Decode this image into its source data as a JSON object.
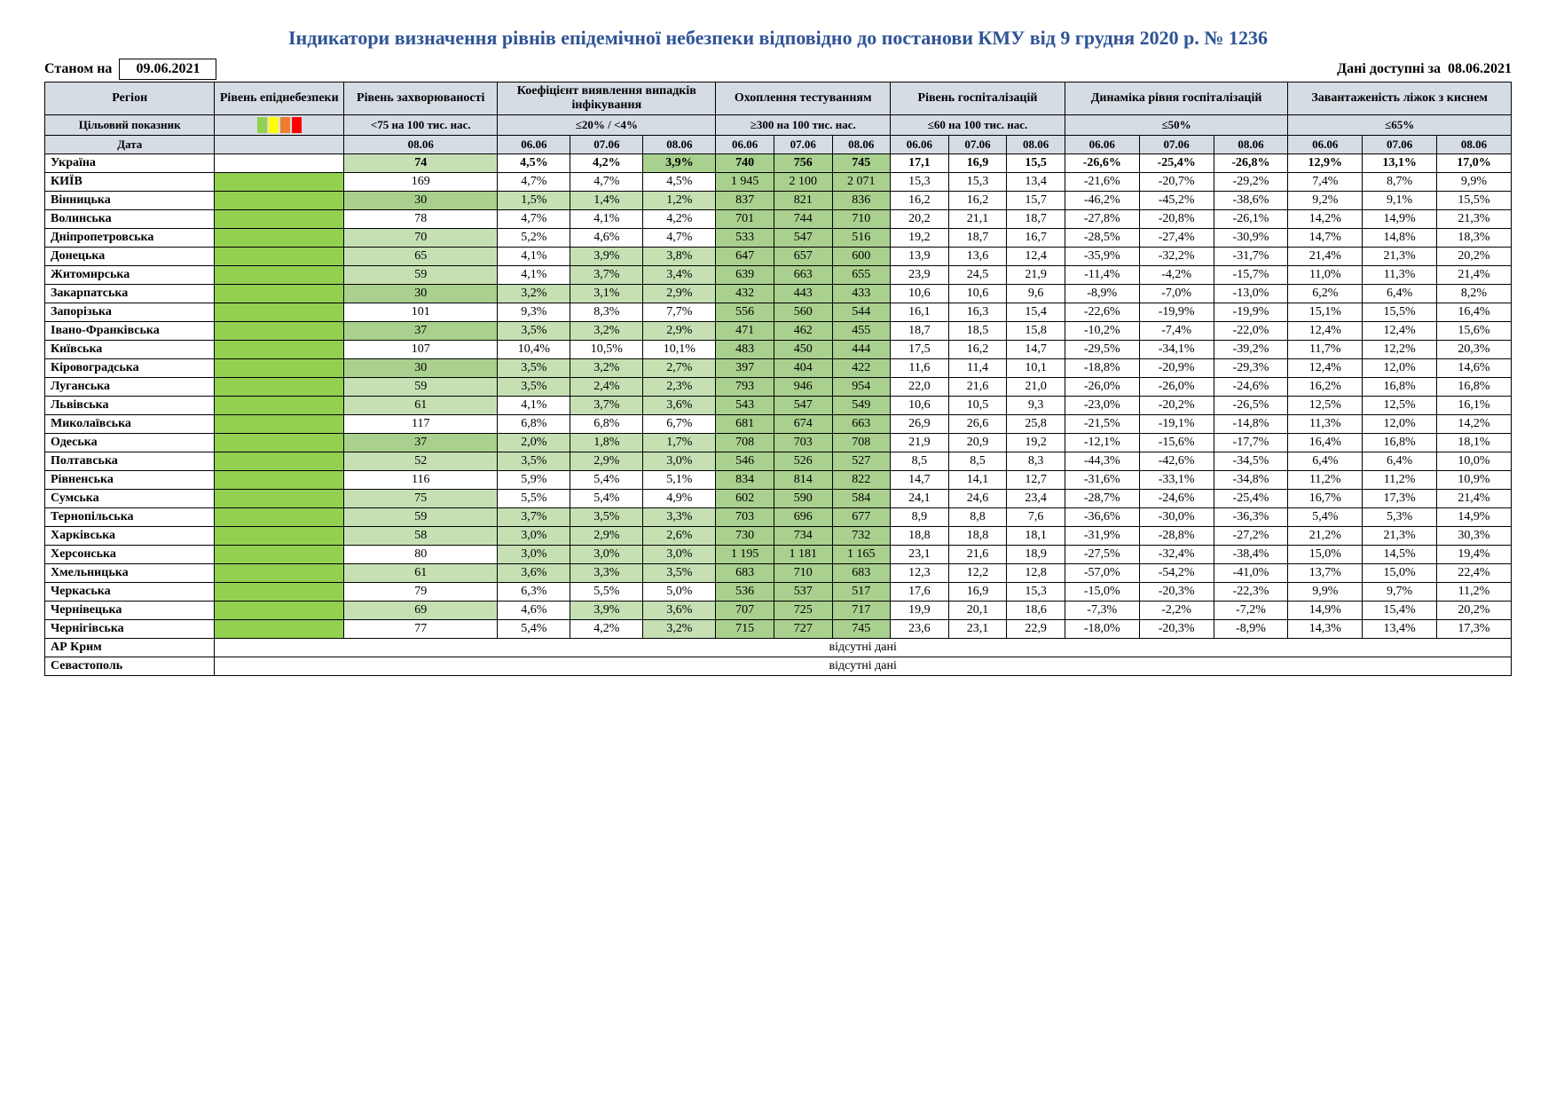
{
  "title": "Індикатори визначення рівнів епідемічної небезпеки відповідно до постанови КМУ від 9 грудня 2020 р. № 1236",
  "asOfLabel": "Станом на",
  "asOfDate": "09.06.2021",
  "dataAvailLabel": "Дані доступні за",
  "dataAvailDate": "08.06.2021",
  "colors": {
    "headerBg": "#d5dce4",
    "greenLight": "#c6e0b4",
    "greenMid": "#a9d08e",
    "greenEpid": "#92d050",
    "titleColor": "#2f5496"
  },
  "headers": {
    "region": "Регіон",
    "epid": "Рівень епіднебезпеки",
    "morbidity": "Рівень захворюваності",
    "detect": "Коефіцієнт виявлення випадків інфікування",
    "testing": "Охоплення тестуванням",
    "hosp": "Рівень госпіталізацій",
    "hospDyn": "Динаміка рівня госпіталізацій",
    "beds": "Завантаженість ліжок з киснем",
    "target": "Цільовий показник",
    "dateRow": "Дата",
    "morbidityTarget": "<75 на 100 тис. нас.",
    "detectTarget": "≤20% / <4%",
    "testingTarget": "≥300 на 100 тис. нас.",
    "hospTarget": "≤60 на 100 тис. нас.",
    "hospDynTarget": "≤50%",
    "bedsTarget": "≤65%",
    "d0606": "06.06",
    "d0706": "07.06",
    "d0806": "08.06"
  },
  "noData": "відсутні дані",
  "rows": [
    {
      "region": "Україна",
      "ukraine": true,
      "morb": {
        "v": "74",
        "g": 1
      },
      "det": [
        "4,5%",
        "4,2%",
        {
          "v": "3,9%",
          "g": 2
        }
      ],
      "test": [
        {
          "v": "740",
          "g": 2
        },
        {
          "v": "756",
          "g": 2
        },
        {
          "v": "745",
          "g": 2
        }
      ],
      "hosp": [
        "17,1",
        "16,9",
        "15,5"
      ],
      "dyn": [
        "-26,6%",
        "-25,4%",
        "-26,8%"
      ],
      "beds": [
        "12,9%",
        "13,1%",
        "17,0%"
      ]
    },
    {
      "region": "КИЇВ",
      "morb": {
        "v": "169"
      },
      "det": [
        "4,7%",
        "4,7%",
        "4,5%"
      ],
      "test": [
        {
          "v": "1 945",
          "g": 2
        },
        {
          "v": "2 100",
          "g": 2
        },
        {
          "v": "2 071",
          "g": 2
        }
      ],
      "hosp": [
        "15,3",
        "15,3",
        "13,4"
      ],
      "dyn": [
        "-21,6%",
        "-20,7%",
        "-29,2%"
      ],
      "beds": [
        "7,4%",
        "8,7%",
        "9,9%"
      ]
    },
    {
      "region": "Вінницька",
      "morb": {
        "v": "30",
        "g": 2
      },
      "det": [
        {
          "v": "1,5%",
          "g": 1
        },
        {
          "v": "1,4%",
          "g": 1
        },
        {
          "v": "1,2%",
          "g": 1
        }
      ],
      "test": [
        {
          "v": "837",
          "g": 2
        },
        {
          "v": "821",
          "g": 2
        },
        {
          "v": "836",
          "g": 2
        }
      ],
      "hosp": [
        "16,2",
        "16,2",
        "15,7"
      ],
      "dyn": [
        "-46,2%",
        "-45,2%",
        "-38,6%"
      ],
      "beds": [
        "9,2%",
        "9,1%",
        "15,5%"
      ]
    },
    {
      "region": "Волинська",
      "morb": {
        "v": "78"
      },
      "det": [
        "4,7%",
        "4,1%",
        "4,2%"
      ],
      "test": [
        {
          "v": "701",
          "g": 2
        },
        {
          "v": "744",
          "g": 2
        },
        {
          "v": "710",
          "g": 2
        }
      ],
      "hosp": [
        "20,2",
        "21,1",
        "18,7"
      ],
      "dyn": [
        "-27,8%",
        "-20,8%",
        "-26,1%"
      ],
      "beds": [
        "14,2%",
        "14,9%",
        "21,3%"
      ]
    },
    {
      "region": "Дніпропетровська",
      "morb": {
        "v": "70",
        "g": 1
      },
      "det": [
        "5,2%",
        "4,6%",
        "4,7%"
      ],
      "test": [
        {
          "v": "533",
          "g": 2
        },
        {
          "v": "547",
          "g": 2
        },
        {
          "v": "516",
          "g": 2
        }
      ],
      "hosp": [
        "19,2",
        "18,7",
        "16,7"
      ],
      "dyn": [
        "-28,5%",
        "-27,4%",
        "-30,9%"
      ],
      "beds": [
        "14,7%",
        "14,8%",
        "18,3%"
      ]
    },
    {
      "region": "Донецька",
      "morb": {
        "v": "65",
        "g": 1
      },
      "det": [
        "4,1%",
        {
          "v": "3,9%",
          "g": 1
        },
        {
          "v": "3,8%",
          "g": 1
        }
      ],
      "test": [
        {
          "v": "647",
          "g": 2
        },
        {
          "v": "657",
          "g": 2
        },
        {
          "v": "600",
          "g": 2
        }
      ],
      "hosp": [
        "13,9",
        "13,6",
        "12,4"
      ],
      "dyn": [
        "-35,9%",
        "-32,2%",
        "-31,7%"
      ],
      "beds": [
        "21,4%",
        "21,3%",
        "20,2%"
      ]
    },
    {
      "region": "Житомирська",
      "morb": {
        "v": "59",
        "g": 1
      },
      "det": [
        "4,1%",
        {
          "v": "3,7%",
          "g": 1
        },
        {
          "v": "3,4%",
          "g": 1
        }
      ],
      "test": [
        {
          "v": "639",
          "g": 2
        },
        {
          "v": "663",
          "g": 2
        },
        {
          "v": "655",
          "g": 2
        }
      ],
      "hosp": [
        "23,9",
        "24,5",
        "21,9"
      ],
      "dyn": [
        "-11,4%",
        "-4,2%",
        "-15,7%"
      ],
      "beds": [
        "11,0%",
        "11,3%",
        "21,4%"
      ]
    },
    {
      "region": "Закарпатська",
      "morb": {
        "v": "30",
        "g": 2
      },
      "det": [
        {
          "v": "3,2%",
          "g": 1
        },
        {
          "v": "3,1%",
          "g": 1
        },
        {
          "v": "2,9%",
          "g": 1
        }
      ],
      "test": [
        {
          "v": "432",
          "g": 2
        },
        {
          "v": "443",
          "g": 2
        },
        {
          "v": "433",
          "g": 2
        }
      ],
      "hosp": [
        "10,6",
        "10,6",
        "9,6"
      ],
      "dyn": [
        "-8,9%",
        "-7,0%",
        "-13,0%"
      ],
      "beds": [
        "6,2%",
        "6,4%",
        "8,2%"
      ]
    },
    {
      "region": "Запорізька",
      "morb": {
        "v": "101"
      },
      "det": [
        "9,3%",
        "8,3%",
        "7,7%"
      ],
      "test": [
        {
          "v": "556",
          "g": 2
        },
        {
          "v": "560",
          "g": 2
        },
        {
          "v": "544",
          "g": 2
        }
      ],
      "hosp": [
        "16,1",
        "16,3",
        "15,4"
      ],
      "dyn": [
        "-22,6%",
        "-19,9%",
        "-19,9%"
      ],
      "beds": [
        "15,1%",
        "15,5%",
        "16,4%"
      ]
    },
    {
      "region": "Івано-Франківська",
      "morb": {
        "v": "37",
        "g": 2
      },
      "det": [
        {
          "v": "3,5%",
          "g": 1
        },
        {
          "v": "3,2%",
          "g": 1
        },
        {
          "v": "2,9%",
          "g": 1
        }
      ],
      "test": [
        {
          "v": "471",
          "g": 2
        },
        {
          "v": "462",
          "g": 2
        },
        {
          "v": "455",
          "g": 2
        }
      ],
      "hosp": [
        "18,7",
        "18,5",
        "15,8"
      ],
      "dyn": [
        "-10,2%",
        "-7,4%",
        "-22,0%"
      ],
      "beds": [
        "12,4%",
        "12,4%",
        "15,6%"
      ]
    },
    {
      "region": "Київська",
      "morb": {
        "v": "107"
      },
      "det": [
        "10,4%",
        "10,5%",
        "10,1%"
      ],
      "test": [
        {
          "v": "483",
          "g": 2
        },
        {
          "v": "450",
          "g": 2
        },
        {
          "v": "444",
          "g": 2
        }
      ],
      "hosp": [
        "17,5",
        "16,2",
        "14,7"
      ],
      "dyn": [
        "-29,5%",
        "-34,1%",
        "-39,2%"
      ],
      "beds": [
        "11,7%",
        "12,2%",
        "20,3%"
      ]
    },
    {
      "region": "Кіровоградська",
      "morb": {
        "v": "30",
        "g": 2
      },
      "det": [
        {
          "v": "3,5%",
          "g": 1
        },
        {
          "v": "3,2%",
          "g": 1
        },
        {
          "v": "2,7%",
          "g": 1
        }
      ],
      "test": [
        {
          "v": "397",
          "g": 2
        },
        {
          "v": "404",
          "g": 2
        },
        {
          "v": "422",
          "g": 2
        }
      ],
      "hosp": [
        "11,6",
        "11,4",
        "10,1"
      ],
      "dyn": [
        "-18,8%",
        "-20,9%",
        "-29,3%"
      ],
      "beds": [
        "12,4%",
        "12,0%",
        "14,6%"
      ]
    },
    {
      "region": "Луганська",
      "morb": {
        "v": "59",
        "g": 1
      },
      "det": [
        {
          "v": "3,5%",
          "g": 1
        },
        {
          "v": "2,4%",
          "g": 1
        },
        {
          "v": "2,3%",
          "g": 1
        }
      ],
      "test": [
        {
          "v": "793",
          "g": 2
        },
        {
          "v": "946",
          "g": 2
        },
        {
          "v": "954",
          "g": 2
        }
      ],
      "hosp": [
        "22,0",
        "21,6",
        "21,0"
      ],
      "dyn": [
        "-26,0%",
        "-26,0%",
        "-24,6%"
      ],
      "beds": [
        "16,2%",
        "16,8%",
        "16,8%"
      ]
    },
    {
      "region": "Львівська",
      "morb": {
        "v": "61",
        "g": 1
      },
      "det": [
        "4,1%",
        {
          "v": "3,7%",
          "g": 1
        },
        {
          "v": "3,6%",
          "g": 1
        }
      ],
      "test": [
        {
          "v": "543",
          "g": 2
        },
        {
          "v": "547",
          "g": 2
        },
        {
          "v": "549",
          "g": 2
        }
      ],
      "hosp": [
        "10,6",
        "10,5",
        "9,3"
      ],
      "dyn": [
        "-23,0%",
        "-20,2%",
        "-26,5%"
      ],
      "beds": [
        "12,5%",
        "12,5%",
        "16,1%"
      ]
    },
    {
      "region": "Миколаївська",
      "morb": {
        "v": "117"
      },
      "det": [
        "6,8%",
        "6,8%",
        "6,7%"
      ],
      "test": [
        {
          "v": "681",
          "g": 2
        },
        {
          "v": "674",
          "g": 2
        },
        {
          "v": "663",
          "g": 2
        }
      ],
      "hosp": [
        "26,9",
        "26,6",
        "25,8"
      ],
      "dyn": [
        "-21,5%",
        "-19,1%",
        "-14,8%"
      ],
      "beds": [
        "11,3%",
        "12,0%",
        "14,2%"
      ]
    },
    {
      "region": "Одеська",
      "morb": {
        "v": "37",
        "g": 2
      },
      "det": [
        {
          "v": "2,0%",
          "g": 1
        },
        {
          "v": "1,8%",
          "g": 1
        },
        {
          "v": "1,7%",
          "g": 1
        }
      ],
      "test": [
        {
          "v": "708",
          "g": 2
        },
        {
          "v": "703",
          "g": 2
        },
        {
          "v": "708",
          "g": 2
        }
      ],
      "hosp": [
        "21,9",
        "20,9",
        "19,2"
      ],
      "dyn": [
        "-12,1%",
        "-15,6%",
        "-17,7%"
      ],
      "beds": [
        "16,4%",
        "16,8%",
        "18,1%"
      ]
    },
    {
      "region": "Полтавська",
      "morb": {
        "v": "52",
        "g": 1
      },
      "det": [
        {
          "v": "3,5%",
          "g": 1
        },
        {
          "v": "2,9%",
          "g": 1
        },
        {
          "v": "3,0%",
          "g": 1
        }
      ],
      "test": [
        {
          "v": "546",
          "g": 2
        },
        {
          "v": "526",
          "g": 2
        },
        {
          "v": "527",
          "g": 2
        }
      ],
      "hosp": [
        "8,5",
        "8,5",
        "8,3"
      ],
      "dyn": [
        "-44,3%",
        "-42,6%",
        "-34,5%"
      ],
      "beds": [
        "6,4%",
        "6,4%",
        "10,0%"
      ]
    },
    {
      "region": "Рівненська",
      "morb": {
        "v": "116"
      },
      "det": [
        "5,9%",
        "5,4%",
        "5,1%"
      ],
      "test": [
        {
          "v": "834",
          "g": 2
        },
        {
          "v": "814",
          "g": 2
        },
        {
          "v": "822",
          "g": 2
        }
      ],
      "hosp": [
        "14,7",
        "14,1",
        "12,7"
      ],
      "dyn": [
        "-31,6%",
        "-33,1%",
        "-34,8%"
      ],
      "beds": [
        "11,2%",
        "11,2%",
        "10,9%"
      ]
    },
    {
      "region": "Сумська",
      "morb": {
        "v": "75",
        "g": 1
      },
      "det": [
        "5,5%",
        "5,4%",
        "4,9%"
      ],
      "test": [
        {
          "v": "602",
          "g": 2
        },
        {
          "v": "590",
          "g": 2
        },
        {
          "v": "584",
          "g": 2
        }
      ],
      "hosp": [
        "24,1",
        "24,6",
        "23,4"
      ],
      "dyn": [
        "-28,7%",
        "-24,6%",
        "-25,4%"
      ],
      "beds": [
        "16,7%",
        "17,3%",
        "21,4%"
      ]
    },
    {
      "region": "Тернопільська",
      "morb": {
        "v": "59",
        "g": 1
      },
      "det": [
        {
          "v": "3,7%",
          "g": 1
        },
        {
          "v": "3,5%",
          "g": 1
        },
        {
          "v": "3,3%",
          "g": 1
        }
      ],
      "test": [
        {
          "v": "703",
          "g": 2
        },
        {
          "v": "696",
          "g": 2
        },
        {
          "v": "677",
          "g": 2
        }
      ],
      "hosp": [
        "8,9",
        "8,8",
        "7,6"
      ],
      "dyn": [
        "-36,6%",
        "-30,0%",
        "-36,3%"
      ],
      "beds": [
        "5,4%",
        "5,3%",
        "14,9%"
      ]
    },
    {
      "region": "Харківська",
      "morb": {
        "v": "58",
        "g": 1
      },
      "det": [
        {
          "v": "3,0%",
          "g": 1
        },
        {
          "v": "2,9%",
          "g": 1
        },
        {
          "v": "2,6%",
          "g": 1
        }
      ],
      "test": [
        {
          "v": "730",
          "g": 2
        },
        {
          "v": "734",
          "g": 2
        },
        {
          "v": "732",
          "g": 2
        }
      ],
      "hosp": [
        "18,8",
        "18,8",
        "18,1"
      ],
      "dyn": [
        "-31,9%",
        "-28,8%",
        "-27,2%"
      ],
      "beds": [
        "21,2%",
        "21,3%",
        "30,3%"
      ]
    },
    {
      "region": "Херсонська",
      "morb": {
        "v": "80"
      },
      "det": [
        {
          "v": "3,0%",
          "g": 1
        },
        {
          "v": "3,0%",
          "g": 1
        },
        {
          "v": "3,0%",
          "g": 1
        }
      ],
      "test": [
        {
          "v": "1 195",
          "g": 2
        },
        {
          "v": "1 181",
          "g": 2
        },
        {
          "v": "1 165",
          "g": 2
        }
      ],
      "hosp": [
        "23,1",
        "21,6",
        "18,9"
      ],
      "dyn": [
        "-27,5%",
        "-32,4%",
        "-38,4%"
      ],
      "beds": [
        "15,0%",
        "14,5%",
        "19,4%"
      ]
    },
    {
      "region": "Хмельницька",
      "morb": {
        "v": "61",
        "g": 1
      },
      "det": [
        {
          "v": "3,6%",
          "g": 1
        },
        {
          "v": "3,3%",
          "g": 1
        },
        {
          "v": "3,5%",
          "g": 1
        }
      ],
      "test": [
        {
          "v": "683",
          "g": 2
        },
        {
          "v": "710",
          "g": 2
        },
        {
          "v": "683",
          "g": 2
        }
      ],
      "hosp": [
        "12,3",
        "12,2",
        "12,8"
      ],
      "dyn": [
        "-57,0%",
        "-54,2%",
        "-41,0%"
      ],
      "beds": [
        "13,7%",
        "15,0%",
        "22,4%"
      ]
    },
    {
      "region": "Черкаська",
      "morb": {
        "v": "79"
      },
      "det": [
        "6,3%",
        "5,5%",
        "5,0%"
      ],
      "test": [
        {
          "v": "536",
          "g": 2
        },
        {
          "v": "537",
          "g": 2
        },
        {
          "v": "517",
          "g": 2
        }
      ],
      "hosp": [
        "17,6",
        "16,9",
        "15,3"
      ],
      "dyn": [
        "-15,0%",
        "-20,3%",
        "-22,3%"
      ],
      "beds": [
        "9,9%",
        "9,7%",
        "11,2%"
      ]
    },
    {
      "region": "Чернівецька",
      "morb": {
        "v": "69",
        "g": 1
      },
      "det": [
        "4,6%",
        {
          "v": "3,9%",
          "g": 1
        },
        {
          "v": "3,6%",
          "g": 1
        }
      ],
      "test": [
        {
          "v": "707",
          "g": 2
        },
        {
          "v": "725",
          "g": 2
        },
        {
          "v": "717",
          "g": 2
        }
      ],
      "hosp": [
        "19,9",
        "20,1",
        "18,6"
      ],
      "dyn": [
        "-7,3%",
        "-2,2%",
        "-7,2%"
      ],
      "beds": [
        "14,9%",
        "15,4%",
        "20,2%"
      ]
    },
    {
      "region": "Чернігівська",
      "morb": {
        "v": "77"
      },
      "det": [
        "5,4%",
        "4,2%",
        {
          "v": "3,2%",
          "g": 1
        }
      ],
      "test": [
        {
          "v": "715",
          "g": 2
        },
        {
          "v": "727",
          "g": 2
        },
        {
          "v": "745",
          "g": 2
        }
      ],
      "hosp": [
        "23,6",
        "23,1",
        "22,9"
      ],
      "dyn": [
        "-18,0%",
        "-20,3%",
        "-8,9%"
      ],
      "beds": [
        "14,3%",
        "13,4%",
        "17,3%"
      ]
    }
  ],
  "noDataRows": [
    "АР Крим",
    "Севастополь"
  ]
}
